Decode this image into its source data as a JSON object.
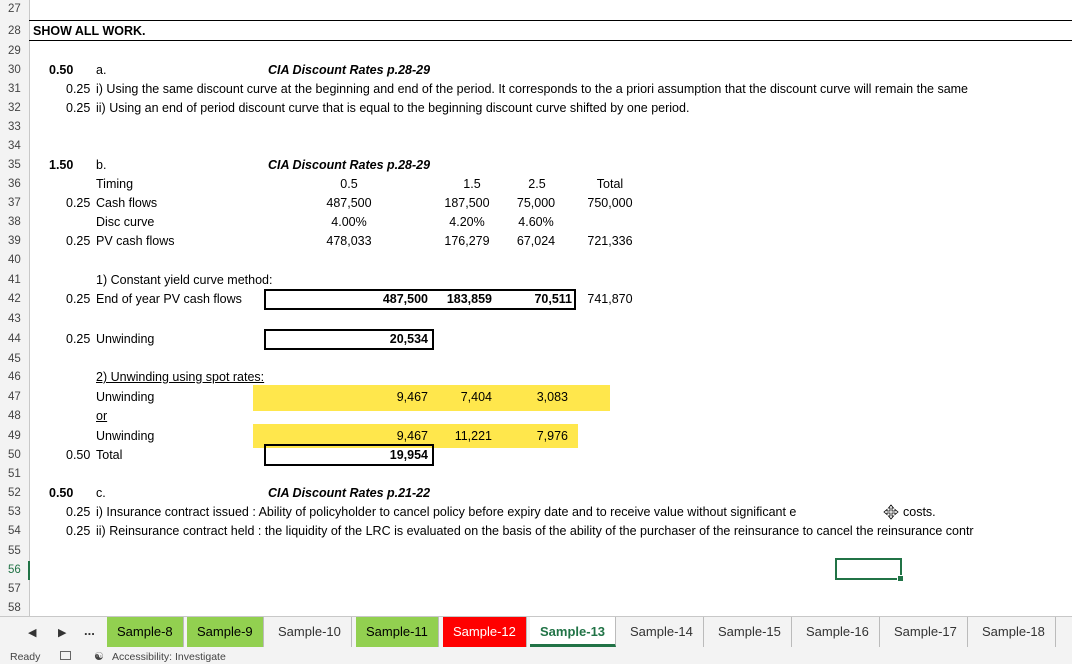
{
  "row_numbers": [
    "27",
    "28",
    "29",
    "30",
    "31",
    "32",
    "33",
    "34",
    "35",
    "36",
    "37",
    "38",
    "39",
    "40",
    "41",
    "42",
    "43",
    "44",
    "45",
    "46",
    "47",
    "48",
    "49",
    "50",
    "51",
    "52",
    "53",
    "54",
    "55",
    "56",
    "57",
    "58"
  ],
  "selected_row": "56",
  "rows": {
    "r28": {
      "a": "SHOW ALL WORK."
    },
    "r30": {
      "pts": "0.50",
      "letter": "a.",
      "ref": "CIA Discount Rates p.28-29"
    },
    "r31": {
      "pts": "0.25",
      "text": "i) Using the same discount curve at the beginning and end of the period. It corresponds to the a priori assumption that the discount curve will remain the same"
    },
    "r32": {
      "pts": "0.25",
      "text": "ii) Using an end of period discount curve that is equal to the beginning discount curve shifted by one period."
    },
    "r35": {
      "pts": "1.50",
      "letter": "b.",
      "ref": "CIA Discount Rates p.28-29"
    },
    "r36": {
      "label": "Timing",
      "v1": "0.5",
      "v2": "1.5",
      "v3": "2.5",
      "tot": "Total"
    },
    "r37": {
      "pts": "0.25",
      "label": "Cash flows",
      "v1": "487,500",
      "v2": "187,500",
      "v3": "75,000",
      "tot": "750,000"
    },
    "r38": {
      "label": "Disc curve",
      "v1": "4.00%",
      "v2": "4.20%",
      "v3": "4.60%"
    },
    "r39": {
      "pts": "0.25",
      "label": "PV cash flows",
      "v1": "478,033",
      "v2": "176,279",
      "v3": "67,024",
      "tot": "721,336"
    },
    "r41": {
      "label": "1) Constant yield curve method:"
    },
    "r42": {
      "pts": "0.25",
      "label": "End of year PV cash flows",
      "v1": "487,500",
      "v2": "183,859",
      "v3": "70,511",
      "tot": "741,870"
    },
    "r44": {
      "pts": "0.25",
      "label": "Unwinding",
      "v1": "20,534"
    },
    "r46": {
      "label": "2) Unwinding using spot rates:"
    },
    "r47": {
      "label": "Unwinding",
      "v1": "9,467",
      "v2": "7,404",
      "v3": "3,083"
    },
    "r48": {
      "label": "or"
    },
    "r49": {
      "label": "Unwinding",
      "v1": "9,467",
      "v2": "11,221",
      "v3": "7,976"
    },
    "r50": {
      "pts": "0.50",
      "label": "Total",
      "v1": "19,954"
    },
    "r52": {
      "pts": "0.50",
      "letter": "c.",
      "ref": "CIA Discount Rates p.21-22"
    },
    "r53": {
      "pts": "0.25",
      "text": "i) Insurance contract issued : Ability of policyholder to cancel policy before expiry date and to receive value without significant e",
      "tail": "costs."
    },
    "r54": {
      "pts": "0.25",
      "text": "ii) Reinsurance contract held : the liquidity of the LRC is evaluated on the basis of the ability of the purchaser of the reinsurance to cancel the reinsurance contr"
    }
  },
  "tabs": {
    "more": "...",
    "t8": "Sample-8",
    "t9": "Sample-9",
    "t10": "Sample-10",
    "t11": "Sample-11",
    "t12": "Sample-12",
    "t13": "Sample-13",
    "t14": "Sample-14",
    "t15": "Sample-15",
    "t16": "Sample-16",
    "t17": "Sample-17",
    "t18": "Sample-18"
  },
  "active_tab": "Sample-13",
  "colors": {
    "accent": "#217346",
    "highlight": "#ffe74c",
    "tab_green": "#92d050",
    "tab_red": "#ff0000"
  },
  "status": {
    "ready": "Ready",
    "accessibility": "Accessibility: Investigate"
  },
  "icons": [
    "chevron-left-icon",
    "chevron-right-icon",
    "macro-record-icon",
    "accessibility-icon",
    "move-cursor-icon"
  ]
}
